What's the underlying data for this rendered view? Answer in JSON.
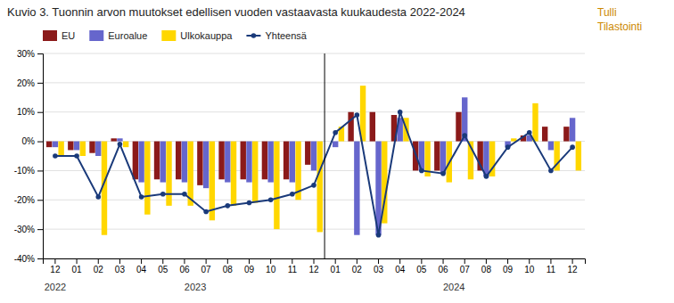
{
  "chart_data": {
    "type": "bar",
    "title": "Kuvio 3. Tuonnin arvon muutokset edellisen vuoden vastaavasta kuukaudesta 2022-2024",
    "categories": [
      "12",
      "01",
      "02",
      "03",
      "04",
      "05",
      "06",
      "07",
      "08",
      "09",
      "10",
      "11",
      "12",
      "01",
      "02",
      "03",
      "04",
      "05",
      "06",
      "07",
      "08",
      "09",
      "10",
      "11",
      "12"
    ],
    "series": [
      {
        "name": "EU",
        "color": "#8B1A1A",
        "values": [
          -2,
          -3,
          -4,
          1,
          -13,
          -13,
          -13,
          -15,
          -13,
          -13,
          -13,
          -13,
          -8,
          0,
          10,
          10,
          9,
          -10,
          -10,
          10,
          -10,
          0,
          2,
          5,
          5
        ]
      },
      {
        "name": "Euroalue",
        "color": "#6666cc",
        "values": [
          -2,
          -3,
          -5,
          1,
          -14,
          -14,
          -14,
          -16,
          -14,
          -14,
          -14,
          -14,
          -10,
          -2,
          -32,
          -32,
          8,
          -10,
          -11,
          15,
          -12,
          -2,
          2,
          -3,
          8
        ]
      },
      {
        "name": "Ulkokauppa",
        "color": "#FFD700",
        "values": [
          -5,
          -5,
          -32,
          -2,
          -25,
          -22,
          -22,
          -27,
          -22,
          -21,
          -30,
          -20,
          -31,
          5,
          19,
          -28,
          8,
          -12,
          -14,
          -13,
          -12,
          1,
          13,
          -10,
          -10
        ]
      },
      {
        "name": "Yhteensä",
        "type": "line",
        "color": "#1a3a7a",
        "marker": "circle",
        "values": [
          -5,
          -5,
          -19,
          -1,
          -19,
          -18,
          -18,
          -24,
          -22,
          -21,
          -20,
          -18,
          -15,
          3,
          9,
          -32,
          10,
          -10,
          -11,
          2,
          -12,
          -2,
          3,
          -10,
          -2
        ]
      }
    ],
    "ylim": [
      -40,
      30
    ],
    "yticks": [
      {
        "value": -40,
        "label": "-40%"
      },
      {
        "value": -30,
        "label": "-30%"
      },
      {
        "value": -20,
        "label": "-20%"
      },
      {
        "value": -10,
        "label": "-10%"
      },
      {
        "value": 0,
        "label": "0%"
      },
      {
        "value": 10,
        "label": "10%"
      },
      {
        "value": 20,
        "label": "20%"
      },
      {
        "value": 30,
        "label": "30%"
      }
    ],
    "grid": true,
    "legend": "top-left",
    "annotations": [
      {
        "text": "2022",
        "x": 0
      },
      {
        "text": "2023",
        "x": 6.5
      },
      {
        "text": "2024",
        "x": 18.5
      },
      {
        "type": "line",
        "x": 12.5
      },
      {
        "text": "Tulli",
        "color": "#cc8800"
      },
      {
        "text": "Tilastointi",
        "color": "#cc8800"
      }
    ]
  }
}
